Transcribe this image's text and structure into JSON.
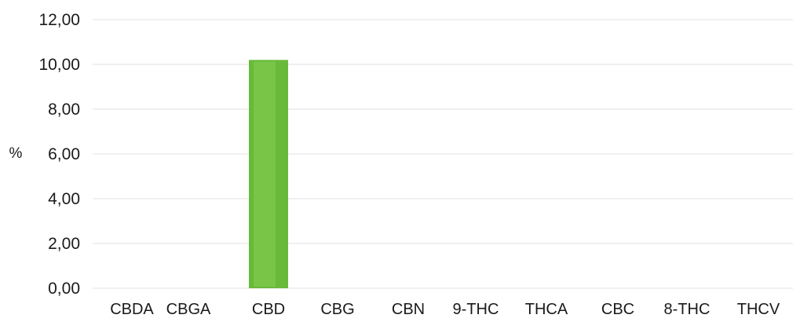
{
  "chart_data": {
    "type": "bar",
    "title": "",
    "xlabel": "",
    "ylabel": "%",
    "categories": [
      "CBDA",
      "CBGA",
      "CBD",
      "CBG",
      "CBN",
      "9-THC",
      "THCA",
      "CBC",
      "8-THC",
      "THCV"
    ],
    "values": [
      0,
      0,
      10.2,
      0,
      0,
      0,
      0,
      0,
      0,
      0
    ],
    "ylim": [
      0,
      12
    ],
    "yticks": [
      0,
      2,
      4,
      6,
      8,
      10,
      12
    ],
    "ytick_labels": [
      "0,00",
      "2,00",
      "4,00",
      "6,00",
      "8,00",
      "10,00",
      "12,00"
    ],
    "grid": true,
    "legend": "none",
    "colors": {
      "bar": "#69b93a",
      "bar_highlight": "#86cf52",
      "gridline": "#e2e2e2"
    }
  }
}
